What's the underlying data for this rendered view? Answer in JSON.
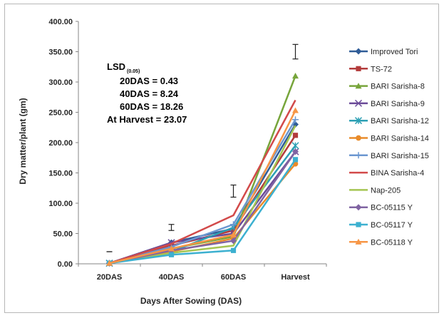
{
  "chart_data": {
    "type": "line",
    "categories": [
      "20DAS",
      "40DAS",
      "60DAS",
      "Harvest"
    ],
    "xlabel": "Days After Sowing (DAS)",
    "ylabel": "Dry matter/plant (gm)",
    "ylim": [
      0,
      400
    ],
    "yticks": [
      "0.00",
      "50.00",
      "100.00",
      "150.00",
      "200.00",
      "250.00",
      "300.00",
      "350.00",
      "400.00"
    ],
    "grid": false,
    "legend_position": "right",
    "series": [
      {
        "name": "Improved Tori",
        "values": [
          1,
          35,
          58,
          230
        ],
        "color": "#2f5c97",
        "marker": "diamond"
      },
      {
        "name": "TS-72",
        "values": [
          1,
          30,
          55,
          212
        ],
        "color": "#b33b3b",
        "marker": "square"
      },
      {
        "name": "BARI Sarisha-8",
        "values": [
          1,
          25,
          45,
          310
        ],
        "color": "#77a53b",
        "marker": "triangle"
      },
      {
        "name": "BARI Sarisha-9",
        "values": [
          1,
          35,
          50,
          185
        ],
        "color": "#6a4a98",
        "marker": "x"
      },
      {
        "name": "BARI Sarisha-12",
        "values": [
          1,
          20,
          60,
          195
        ],
        "color": "#2da0b4",
        "marker": "star"
      },
      {
        "name": "BARI Sarisha-14",
        "values": [
          1,
          20,
          42,
          165
        ],
        "color": "#e98b2a",
        "marker": "circle"
      },
      {
        "name": "BARI Sarisha-15",
        "values": [
          1,
          28,
          65,
          238
        ],
        "color": "#6b97d0",
        "marker": "plus"
      },
      {
        "name": "BINA Sarisha-4",
        "values": [
          1,
          33,
          80,
          270
        ],
        "color": "#d24a4a",
        "marker": "none"
      },
      {
        "name": "Nap-205",
        "values": [
          1,
          18,
          30,
          228
        ],
        "color": "#a5c552",
        "marker": "none"
      },
      {
        "name": "BC-05115 Y",
        "values": [
          1,
          22,
          38,
          185
        ],
        "color": "#8064a2",
        "marker": "diamond"
      },
      {
        "name": "BC-05117 Y",
        "values": [
          1,
          15,
          22,
          172
        ],
        "color": "#3cb0d0",
        "marker": "square"
      },
      {
        "name": "BC-05118 Y",
        "values": [
          1,
          25,
          48,
          253
        ],
        "color": "#f79646",
        "marker": "triangle"
      }
    ],
    "error_bars": [
      {
        "category": "20DAS",
        "y": 20,
        "half_range": 0
      },
      {
        "category": "40DAS",
        "y": 60,
        "half_range": 5
      },
      {
        "category": "60DAS",
        "y": 120,
        "half_range": 10
      },
      {
        "category": "Harvest",
        "y": 350,
        "half_range": 12
      }
    ],
    "annotation": {
      "title": "LSD",
      "subscript": "(0.05)",
      "lines": [
        "20DAS = 0.43",
        "40DAS = 8.24",
        "60DAS = 18.26",
        "At Harvest = 23.07"
      ]
    }
  }
}
